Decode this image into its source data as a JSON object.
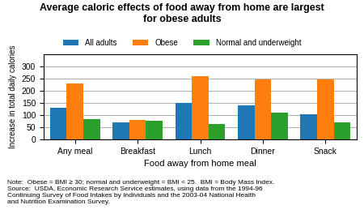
{
  "chart_data": {
    "type": "bar",
    "title": "Average caloric effects of food away from home are largest\nfor obese adults",
    "xlabel": "Food away from home meal",
    "ylabel": "Increase in total daily calories",
    "categories": [
      "Any meal",
      "Breakfast",
      "Lunch",
      "Dinner",
      "Snack"
    ],
    "series": [
      {
        "name": "All adults",
        "values": [
          130,
          70,
          152,
          140,
          103
        ]
      },
      {
        "name": "Obese",
        "values": [
          230,
          82,
          262,
          248,
          248
        ]
      },
      {
        "name": "Normal and underweight",
        "values": [
          85,
          78,
          65,
          110,
          70
        ]
      }
    ],
    "ylim": [
      0,
      350
    ],
    "yticks": [
      0,
      50,
      100,
      150,
      200,
      250,
      300
    ],
    "grid": true,
    "legend": "upper center",
    "note": "Note:  Obese = BMI ≥ 30; normal and underweight = BMI < 25.  BMI = Body Mass Index.\nSource:  USDA, Economic Research Service estimates, using data from the 1994-96\nContinuing Survey of Food Intakes by Individuals and the 2003-04 National Health\nand Nutrition Examination Survey."
  }
}
